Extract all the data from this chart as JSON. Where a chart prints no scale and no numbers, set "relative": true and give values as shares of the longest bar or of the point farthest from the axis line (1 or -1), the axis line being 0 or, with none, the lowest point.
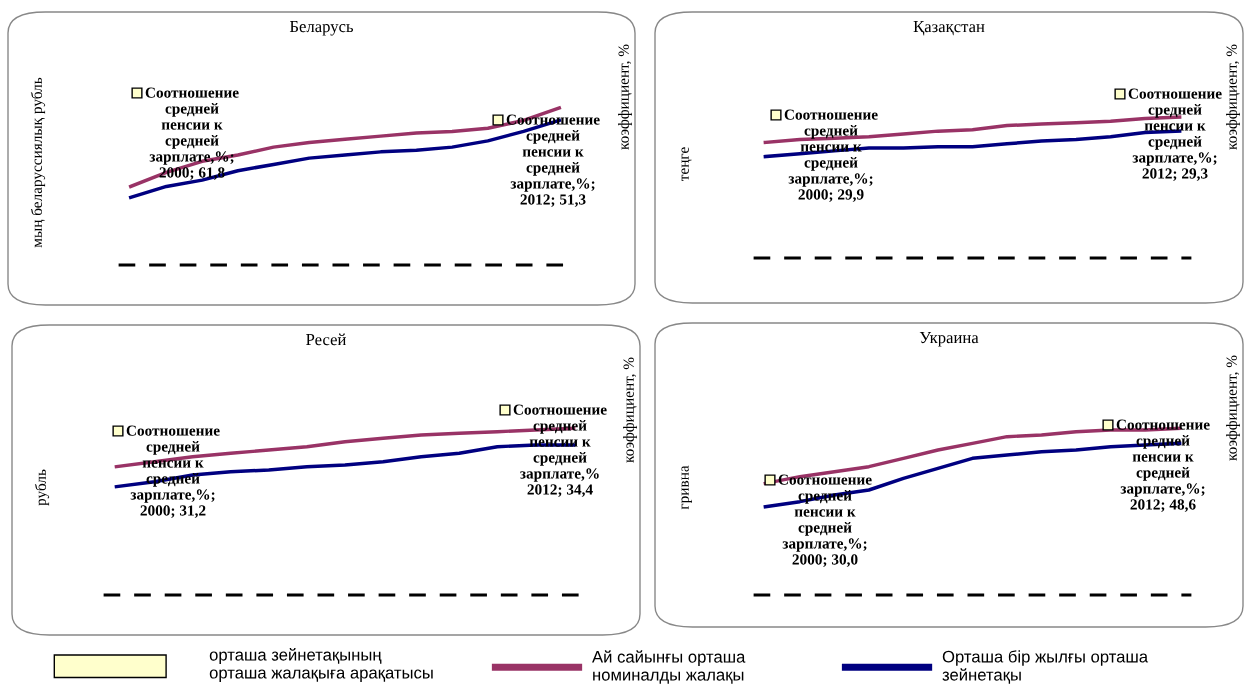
{
  "chart_data": [
    {
      "type": "line",
      "title": "Беларусь",
      "ylabel": "мың беларуссиялық рубль",
      "y2label": "коэффициент, %",
      "relative": true,
      "legend": "bottom",
      "categories": [
        null,
        null,
        null,
        null,
        null,
        null,
        null,
        null,
        null,
        null,
        null,
        null,
        null
      ],
      "series": [
        {
          "name": "Ай сайынғы орташа\nноминалды жалақы",
          "color": "#993366",
          "values": [
            0.5,
            0.59,
            0.66,
            0.7,
            0.75,
            0.78,
            0.8,
            0.82,
            0.84,
            0.85,
            0.87,
            0.92,
            1.0
          ]
        },
        {
          "name": "Орташа бір жылғы орташа\nзейнетақы",
          "color": "#000080",
          "values": [
            0.43,
            0.5,
            0.54,
            0.6,
            0.64,
            0.68,
            0.7,
            0.72,
            0.73,
            0.75,
            0.79,
            0.85,
            0.92
          ]
        }
      ],
      "annotations": [
        "Соотношение\nсредней\nпенсии к\nсредней\nзарплате,%;\n2000; 61,8",
        "Соотношение\nсредней\nпенсии к\nсредней\nзарплате,%;\n2012; 51,3"
      ]
    },
    {
      "type": "line",
      "title": "Қазақстан",
      "ylabel": "теңге",
      "y2label": "коэффициент, %",
      "relative": true,
      "categories": [
        null,
        null,
        null,
        null,
        null,
        null,
        null,
        null,
        null,
        null,
        null,
        null,
        null
      ],
      "series": [
        {
          "color": "#993366",
          "values": [
            0.82,
            0.84,
            0.85,
            0.86,
            0.88,
            0.9,
            0.91,
            0.94,
            0.95,
            0.96,
            0.97,
            0.99,
            1.0
          ]
        },
        {
          "color": "#000080",
          "values": [
            0.72,
            0.74,
            0.76,
            0.78,
            0.78,
            0.79,
            0.79,
            0.81,
            0.83,
            0.84,
            0.86,
            0.89,
            0.9
          ]
        }
      ],
      "annotations": [
        "Соотношение\nсредней\nпенсии к\nсредней\nзарплате,%;\n2000; 29,9",
        "Соотношение\nсредней\nпенсии к\nсредней\nзарплате,%;\n2012; 29,3"
      ]
    },
    {
      "type": "line",
      "title": "Ресей",
      "ylabel": "рубль",
      "y2label": "коэффициент, %",
      "relative": true,
      "categories": [
        null,
        null,
        null,
        null,
        null,
        null,
        null,
        null,
        null,
        null,
        null,
        null,
        null
      ],
      "series": [
        {
          "color": "#993366",
          "values": [
            0.77,
            0.8,
            0.83,
            0.85,
            0.87,
            0.89,
            0.92,
            0.94,
            0.96,
            0.97,
            0.98,
            0.99,
            1.0
          ]
        },
        {
          "color": "#000080",
          "values": [
            0.65,
            0.68,
            0.72,
            0.74,
            0.75,
            0.77,
            0.78,
            0.8,
            0.83,
            0.85,
            0.89,
            0.9,
            0.9
          ]
        }
      ],
      "annotations": [
        "Соотношение\nсредней\nпенсии к\nсредней\nзарплате,%;\n2000; 31,2",
        "Соотношение\nсредней\nпенсии к\nсредней\nзарплате,%\n2012; 34,4"
      ]
    },
    {
      "type": "line",
      "title": "Украина",
      "ylabel": "гривна",
      "y2label": "коэффициент, %",
      "relative": true,
      "categories": [
        null,
        null,
        null,
        null,
        null,
        null,
        null,
        null,
        null,
        null,
        null,
        null,
        null
      ],
      "series": [
        {
          "color": "#993366",
          "values": [
            0.67,
            0.71,
            0.74,
            0.77,
            0.82,
            0.87,
            0.91,
            0.95,
            0.96,
            0.98,
            0.99,
            0.99,
            1.0
          ]
        },
        {
          "color": "#000080",
          "values": [
            0.53,
            0.56,
            0.6,
            0.63,
            0.7,
            0.76,
            0.82,
            0.84,
            0.86,
            0.87,
            0.89,
            0.9,
            0.91
          ]
        }
      ],
      "annotations": [
        "Соотношение\nсредней\nпенсии к\nсредней\nзарплате,%;\n2000; 30,0",
        "Соотношение\nсредней\nпенсии к\nсредней\nзарплате,%;\n2012; 48,6"
      ]
    },
    {
      "type": "other",
      "annotations": [
        "орташа зейнетақының\nорташа жалақыға арақатысы"
      ]
    }
  ]
}
